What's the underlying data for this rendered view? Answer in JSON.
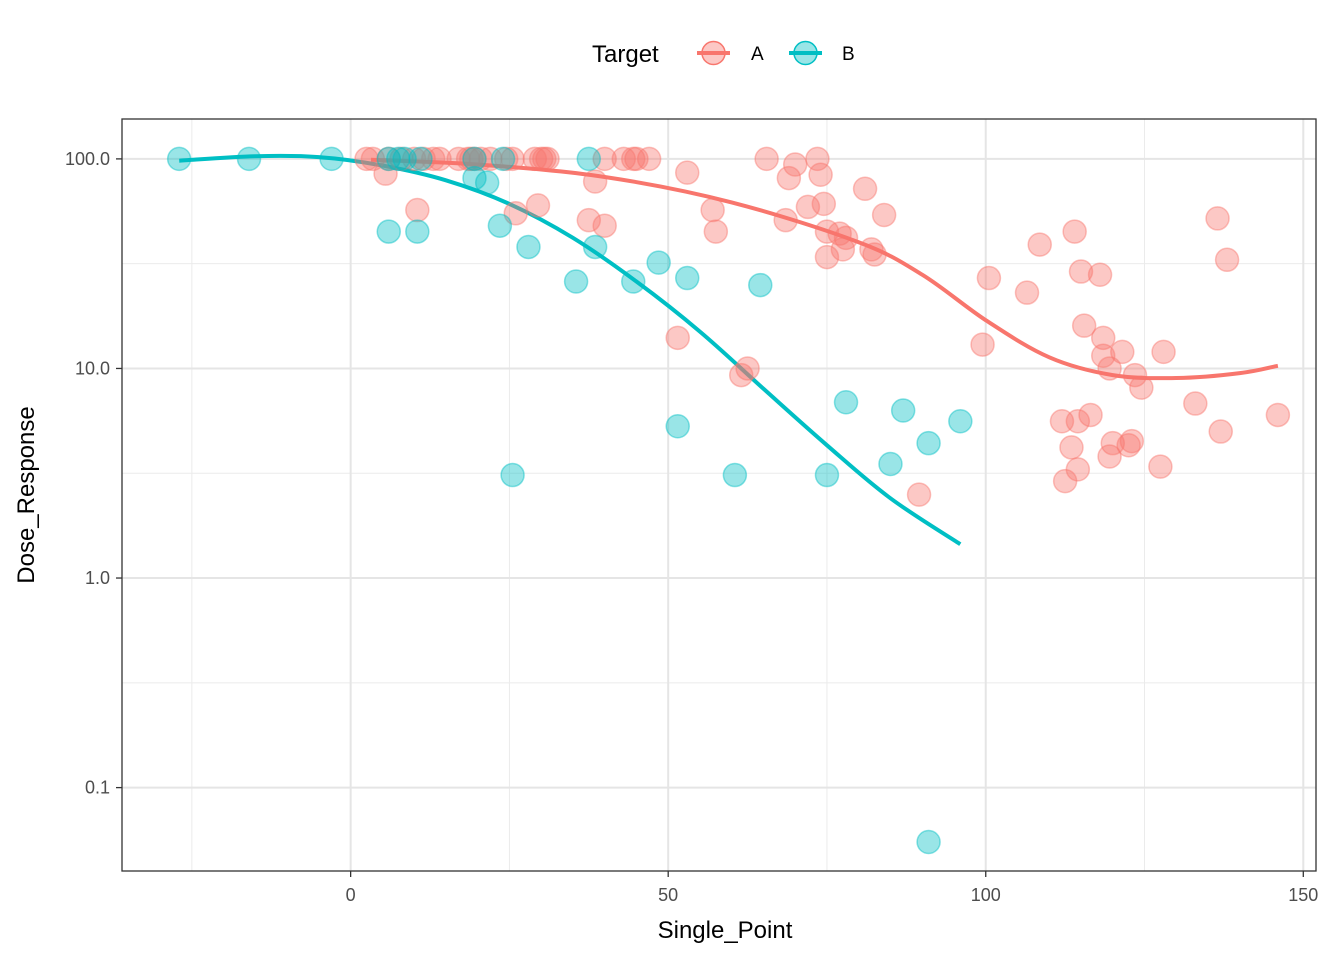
{
  "chart_data": {
    "type": "scatter",
    "xlabel": "Single_Point",
    "ylabel": "Dose_Response",
    "xlim": [
      -36,
      152
    ],
    "ylim": [
      0.04,
      155
    ],
    "yscale": "log",
    "x_ticks": [
      0,
      50,
      100,
      150
    ],
    "x_tick_labels": [
      "0",
      "50",
      "100",
      "150"
    ],
    "y_ticks": [
      0.1,
      1,
      10,
      100
    ],
    "y_tick_labels": [
      "0.1",
      "1.0",
      "10.0",
      "100.0"
    ],
    "grid": true,
    "legend": {
      "title": "Target",
      "position": "top"
    },
    "series": [
      {
        "name": "A",
        "color": "#F8766D",
        "points": [
          [
            2.5,
            100
          ],
          [
            3.5,
            100
          ],
          [
            6,
            100
          ],
          [
            8,
            100
          ],
          [
            10,
            100
          ],
          [
            11.5,
            100
          ],
          [
            13,
            100
          ],
          [
            14,
            100
          ],
          [
            17,
            100
          ],
          [
            18.5,
            100
          ],
          [
            19,
            100
          ],
          [
            19.5,
            100
          ],
          [
            20.5,
            100
          ],
          [
            22,
            100
          ],
          [
            24.5,
            100
          ],
          [
            25.5,
            100
          ],
          [
            29,
            100
          ],
          [
            30,
            100
          ],
          [
            30.5,
            100
          ],
          [
            31,
            100
          ],
          [
            40,
            100
          ],
          [
            43,
            100
          ],
          [
            44.5,
            100
          ],
          [
            45,
            100
          ],
          [
            47,
            100
          ],
          [
            65.5,
            100
          ],
          [
            73.5,
            100
          ],
          [
            5.5,
            85
          ],
          [
            10.5,
            57
          ],
          [
            26,
            55
          ],
          [
            29.5,
            60
          ],
          [
            37.5,
            51
          ],
          [
            38.5,
            78
          ],
          [
            40,
            48
          ],
          [
            53,
            86
          ],
          [
            57,
            57
          ],
          [
            57.5,
            45
          ],
          [
            68.5,
            51
          ],
          [
            69,
            81
          ],
          [
            70,
            94
          ],
          [
            72,
            59
          ],
          [
            74,
            84
          ],
          [
            74.5,
            61
          ],
          [
            75,
            45
          ],
          [
            75,
            34
          ],
          [
            77,
            44
          ],
          [
            77.5,
            37
          ],
          [
            78,
            42
          ],
          [
            81,
            72
          ],
          [
            82,
            37
          ],
          [
            82.5,
            35
          ],
          [
            84,
            54
          ],
          [
            51.5,
            14
          ],
          [
            61.5,
            9.3
          ],
          [
            62.5,
            10
          ],
          [
            89.5,
            2.5
          ],
          [
            99.5,
            13
          ],
          [
            100.5,
            27
          ],
          [
            106.5,
            23
          ],
          [
            108.5,
            39
          ],
          [
            112,
            5.6
          ],
          [
            112.5,
            2.9
          ],
          [
            113.5,
            4.2
          ],
          [
            114,
            45
          ],
          [
            114.5,
            5.6
          ],
          [
            114.5,
            3.3
          ],
          [
            115,
            29
          ],
          [
            115.5,
            16
          ],
          [
            116.5,
            6
          ],
          [
            118,
            28
          ],
          [
            118.5,
            14
          ],
          [
            118.5,
            11.5
          ],
          [
            119.5,
            10
          ],
          [
            119.5,
            3.8
          ],
          [
            120,
            4.4
          ],
          [
            121.5,
            12
          ],
          [
            122.5,
            4.3
          ],
          [
            123,
            4.5
          ],
          [
            123.5,
            9.3
          ],
          [
            124.5,
            8.1
          ],
          [
            127.5,
            3.4
          ],
          [
            128,
            12
          ],
          [
            133,
            6.8
          ],
          [
            136.5,
            52
          ],
          [
            137,
            5
          ],
          [
            138,
            33
          ],
          [
            146,
            6
          ]
        ],
        "curve": [
          [
            3.2,
            99
          ],
          [
            20,
            94
          ],
          [
            40,
            82
          ],
          [
            60,
            62
          ],
          [
            80,
            40
          ],
          [
            90,
            28
          ],
          [
            100,
            17
          ],
          [
            110,
            11.3
          ],
          [
            120,
            9.3
          ],
          [
            130,
            9
          ],
          [
            140,
            9.5
          ],
          [
            146,
            10.3
          ]
        ]
      },
      {
        "name": "B",
        "color": "#00BFC4",
        "points": [
          [
            -27,
            100
          ],
          [
            -16,
            100
          ],
          [
            -3,
            100
          ],
          [
            6,
            100
          ],
          [
            7.5,
            100
          ],
          [
            8.5,
            100
          ],
          [
            11,
            100
          ],
          [
            19.5,
            100
          ],
          [
            24,
            100
          ],
          [
            37.5,
            100
          ],
          [
            6,
            45
          ],
          [
            10.5,
            45
          ],
          [
            19.5,
            81
          ],
          [
            21.5,
            77
          ],
          [
            23.5,
            48
          ],
          [
            25.5,
            3.1
          ],
          [
            28,
            38
          ],
          [
            35.5,
            26
          ],
          [
            38.5,
            38
          ],
          [
            44.5,
            26
          ],
          [
            48.5,
            32
          ],
          [
            51.5,
            5.3
          ],
          [
            53,
            27
          ],
          [
            60.5,
            3.1
          ],
          [
            64.5,
            25
          ],
          [
            75,
            3.1
          ],
          [
            78,
            6.9
          ],
          [
            85,
            3.5
          ],
          [
            87,
            6.3
          ],
          [
            91,
            0.055
          ],
          [
            91,
            4.4
          ],
          [
            96,
            5.6
          ]
        ],
        "curve": [
          [
            -27,
            98
          ],
          [
            -15,
            103
          ],
          [
            -5,
            102
          ],
          [
            5,
            93
          ],
          [
            15,
            79
          ],
          [
            25,
            61
          ],
          [
            35,
            42
          ],
          [
            45,
            26
          ],
          [
            55,
            15
          ],
          [
            65,
            8
          ],
          [
            75,
            4.3
          ],
          [
            85,
            2.4
          ],
          [
            96,
            1.45
          ]
        ]
      }
    ]
  }
}
